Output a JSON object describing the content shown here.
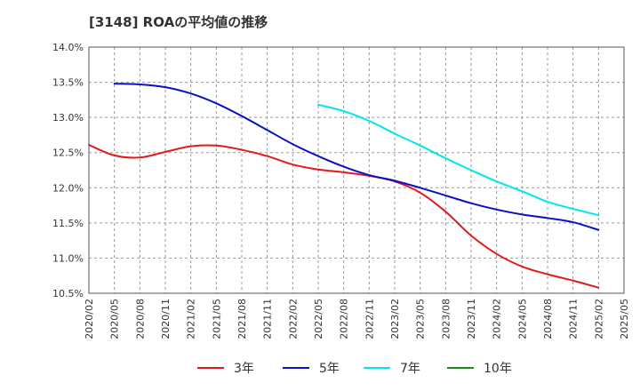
{
  "chart_data": {
    "type": "line",
    "title": "[3148]  ROAの平均値の推移",
    "xlabel": "",
    "ylabel": "",
    "ylim": [
      10.5,
      14.0
    ],
    "y_ticks": [
      "14.0%",
      "13.5%",
      "13.0%",
      "12.5%",
      "12.0%",
      "11.5%",
      "11.0%",
      "10.5%"
    ],
    "y_tick_values": [
      14.0,
      13.5,
      13.0,
      12.5,
      12.0,
      11.5,
      11.0,
      10.5
    ],
    "x_ticks": [
      "2020/02",
      "2020/05",
      "2020/08",
      "2020/11",
      "2021/02",
      "2021/05",
      "2021/08",
      "2021/11",
      "2022/02",
      "2022/05",
      "2022/08",
      "2022/11",
      "2023/02",
      "2023/05",
      "2023/08",
      "2023/11",
      "2024/02",
      "2024/05",
      "2024/08",
      "2024/11",
      "2025/02",
      "2025/05"
    ],
    "grid": true,
    "legend_position": "bottom",
    "series": [
      {
        "name": "3年",
        "color": "#e31a1c",
        "values": [
          12.61,
          12.46,
          12.43,
          12.51,
          12.59,
          12.6,
          12.54,
          12.45,
          12.33,
          12.26,
          12.22,
          12.17,
          12.09,
          11.93,
          11.66,
          11.32,
          11.06,
          10.88,
          10.77,
          10.68,
          10.58,
          null
        ]
      },
      {
        "name": "5年",
        "color": "#0a10c8",
        "values": [
          null,
          13.48,
          13.47,
          13.43,
          13.34,
          13.2,
          13.02,
          12.82,
          12.62,
          12.45,
          12.3,
          12.18,
          12.1,
          12.0,
          11.89,
          11.78,
          11.69,
          11.62,
          11.57,
          11.51,
          11.4,
          null
        ]
      },
      {
        "name": "7年",
        "color": "#00e5ee",
        "values": [
          null,
          null,
          null,
          null,
          null,
          null,
          null,
          null,
          null,
          13.18,
          13.09,
          12.95,
          12.77,
          12.6,
          12.42,
          12.25,
          12.09,
          11.95,
          11.8,
          11.7,
          11.61,
          null
        ]
      },
      {
        "name": "10年",
        "color": "#1a8a1a",
        "values": [
          null,
          null,
          null,
          null,
          null,
          null,
          null,
          null,
          null,
          null,
          null,
          null,
          null,
          null,
          null,
          null,
          null,
          null,
          null,
          null,
          null,
          null
        ]
      }
    ]
  }
}
